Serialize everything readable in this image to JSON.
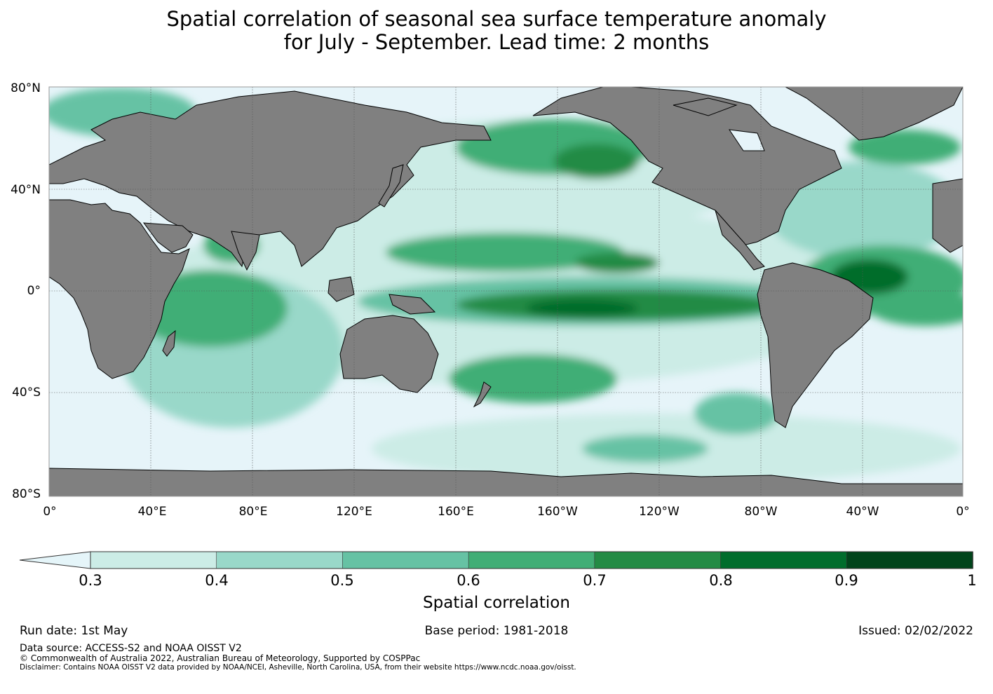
{
  "title": {
    "line1": "Spatial correlation of seasonal sea surface temperature anomaly",
    "line2": "for July - September. Lead time: 2 months"
  },
  "map": {
    "lat_ticks": [
      "80°N",
      "40°N",
      "0°",
      "40°S",
      "80°S"
    ],
    "lon_ticks": [
      "0°",
      "40°E",
      "80°E",
      "120°E",
      "160°E",
      "160°W",
      "120°W",
      "80°W",
      "40°W",
      "0°"
    ],
    "colors": {
      "land": "#808080",
      "ocean_low": "#e6f4f9",
      "gridline": "#555555"
    }
  },
  "colorbar": {
    "label": "Spatial correlation",
    "tick_labels": [
      "0.3",
      "0.4",
      "0.5",
      "0.6",
      "0.7",
      "0.8",
      "0.9",
      "1"
    ],
    "colors": [
      "#e5f5f9",
      "#ccece6",
      "#99d8c9",
      "#66c2a4",
      "#41ae76",
      "#238b45",
      "#006d2c",
      "#00441b"
    ]
  },
  "footer": {
    "run_date": "Run date: 1st May",
    "base_period": "Base period: 1981-2018",
    "issued": "Issued: 02/02/2022",
    "data_source": "Data source: ACCESS-S2 and NOAA OISST V2",
    "copyright": "© Commonwealth of Australia 2022, Australian Bureau of Meteorology, Supported by COSPPac",
    "disclaimer": "Disclaimer: Contains NOAA OISST V2 data provided by NOAA/NCEI, Asheville, North Carolina, USA, from their website https://www.ncdc.noaa.gov/oisst."
  }
}
